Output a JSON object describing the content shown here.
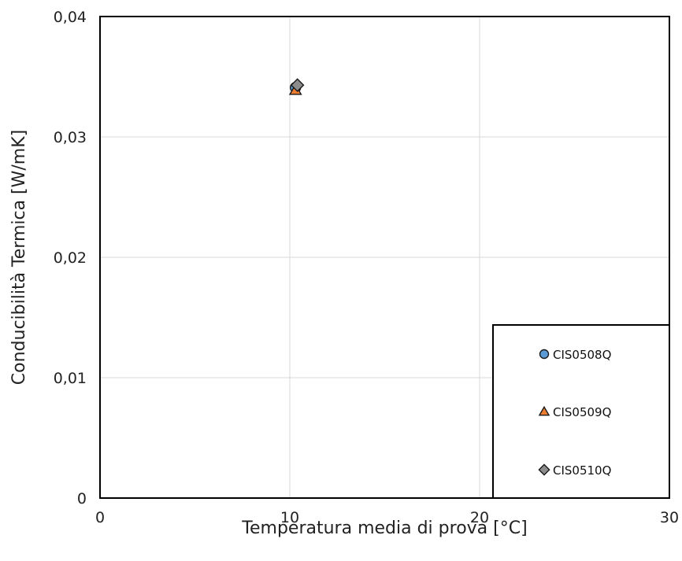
{
  "chart_data": {
    "type": "scatter",
    "xlabel": "Temperatura media di prova [°C]",
    "ylabel": "Conducibilità Termica [W/mK]",
    "xlim": [
      0,
      30
    ],
    "ylim": [
      0,
      0.04
    ],
    "xticks": [
      0,
      10,
      20,
      30
    ],
    "xtick_labels": [
      "0",
      "10",
      "20",
      "30"
    ],
    "yticks": [
      0,
      0.01,
      0.02,
      0.03,
      0.04
    ],
    "ytick_labels": [
      "0",
      "0,01",
      "0,02",
      "0,03",
      "0,04"
    ],
    "grid": true,
    "legend_position": "bottom-right",
    "series": [
      {
        "name": "CIS0508Q",
        "marker": "circle",
        "color": "#5b9bd5",
        "points": [
          {
            "x": 10.3,
            "y": 0.0341
          }
        ]
      },
      {
        "name": "CIS0509Q",
        "marker": "triangle",
        "color": "#ed7d31",
        "points": [
          {
            "x": 10.3,
            "y": 0.0339
          }
        ]
      },
      {
        "name": "CIS0510Q",
        "marker": "diamond",
        "color": "#8c8c8c",
        "points": [
          {
            "x": 10.4,
            "y": 0.0343
          }
        ]
      }
    ]
  }
}
